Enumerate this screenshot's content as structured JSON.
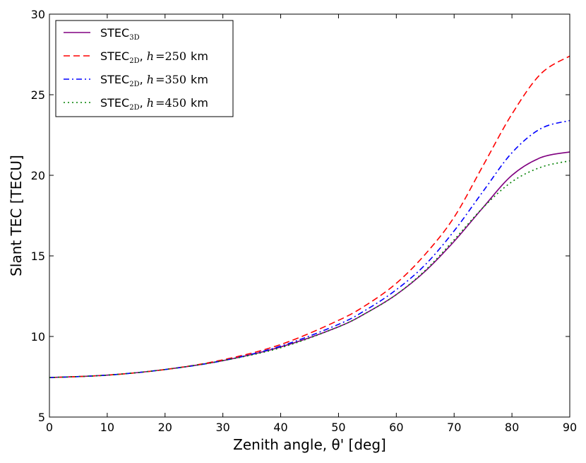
{
  "chart_data": {
    "type": "line",
    "title": "",
    "xlabel": "Zenith angle, θ' [deg]",
    "ylabel": "Slant TEC [TECU]",
    "xlim": [
      0,
      90
    ],
    "ylim": [
      5,
      30
    ],
    "xticks": [
      "0",
      "10",
      "20",
      "30",
      "40",
      "50",
      "60",
      "70",
      "80",
      "90"
    ],
    "yticks": [
      "5",
      "10",
      "15",
      "20",
      "25",
      "30"
    ],
    "legend_position": "top-left",
    "series": [
      {
        "name": "STEC_3D",
        "legend": {
          "base": "STEC",
          "sub": "3D",
          "suffix": "",
          "h": ""
        },
        "color": "#800080",
        "style": "solid",
        "x": [
          0,
          10,
          20,
          30,
          40,
          50,
          55,
          60,
          65,
          70,
          75,
          80,
          85,
          90
        ],
        "y": [
          7.45,
          7.6,
          7.95,
          8.5,
          9.35,
          10.6,
          11.5,
          12.6,
          14.05,
          15.9,
          18.0,
          20.0,
          21.1,
          21.45
        ]
      },
      {
        "name": "STEC_2D, h=250 km",
        "legend": {
          "base": "STEC",
          "sub": "2D",
          "suffix": ", ",
          "h": "250"
        },
        "color": "#ff0000",
        "style": "dashed",
        "x": [
          0,
          10,
          20,
          30,
          40,
          50,
          55,
          60,
          65,
          70,
          75,
          80,
          85,
          90
        ],
        "y": [
          7.45,
          7.6,
          7.95,
          8.55,
          9.5,
          11.0,
          12.0,
          13.3,
          15.1,
          17.4,
          20.6,
          23.8,
          26.3,
          27.4
        ]
      },
      {
        "name": "STEC_2D, h=350 km",
        "legend": {
          "base": "STEC",
          "sub": "2D",
          "suffix": ", ",
          "h": "350"
        },
        "color": "#0000ff",
        "style": "dashdot",
        "x": [
          0,
          10,
          20,
          30,
          40,
          50,
          55,
          60,
          65,
          70,
          75,
          80,
          85,
          90
        ],
        "y": [
          7.45,
          7.6,
          7.95,
          8.5,
          9.4,
          10.75,
          11.7,
          12.9,
          14.45,
          16.55,
          19.0,
          21.4,
          22.9,
          23.4
        ]
      },
      {
        "name": "STEC_2D, h=450 km",
        "legend": {
          "base": "STEC",
          "sub": "2D",
          "suffix": ", ",
          "h": "450"
        },
        "color": "#008000",
        "style": "dotted",
        "x": [
          0,
          10,
          20,
          30,
          40,
          50,
          55,
          60,
          65,
          70,
          75,
          80,
          85,
          90
        ],
        "y": [
          7.45,
          7.6,
          7.95,
          8.5,
          9.3,
          10.6,
          11.5,
          12.6,
          14.1,
          16.0,
          18.0,
          19.6,
          20.5,
          20.9
        ]
      }
    ]
  }
}
